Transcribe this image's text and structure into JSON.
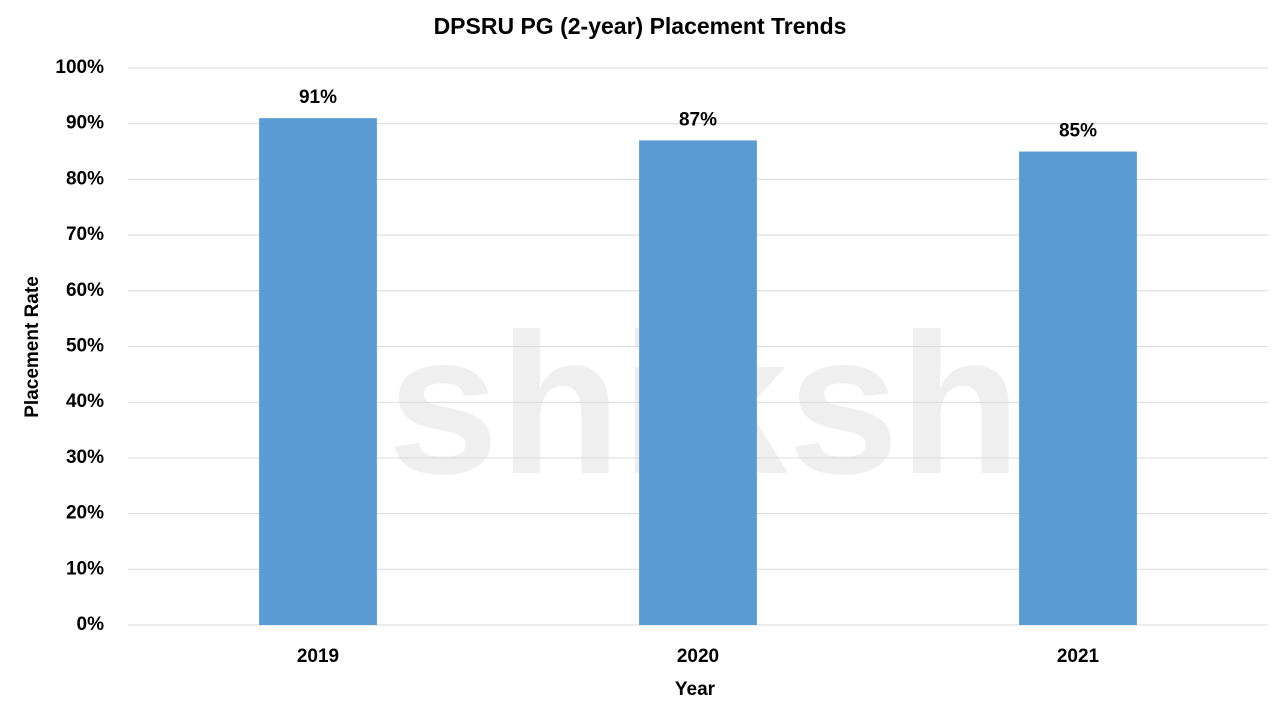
{
  "chart_data": {
    "type": "bar",
    "title": "DPSRU PG (2-year) Placement Trends",
    "categories": [
      "2019",
      "2020",
      "2021"
    ],
    "values": [
      91,
      87,
      85
    ],
    "value_labels": [
      "91%",
      "87%",
      "85%"
    ],
    "color": "#5b9bd5",
    "xlabel": "Year",
    "ylabel": "Placement Rate",
    "ylim": [
      0,
      100
    ],
    "yticks": [
      {
        "value": 0,
        "label": "0%"
      },
      {
        "value": 10,
        "label": "10%"
      },
      {
        "value": 20,
        "label": "20%"
      },
      {
        "value": 30,
        "label": "30%"
      },
      {
        "value": 40,
        "label": "40%"
      },
      {
        "value": 50,
        "label": "50%"
      },
      {
        "value": 60,
        "label": "60%"
      },
      {
        "value": 70,
        "label": "70%"
      },
      {
        "value": 80,
        "label": "80%"
      },
      {
        "value": 90,
        "label": "90%"
      },
      {
        "value": 100,
        "label": "100%"
      }
    ],
    "grid": true,
    "watermark": "shiksha"
  }
}
